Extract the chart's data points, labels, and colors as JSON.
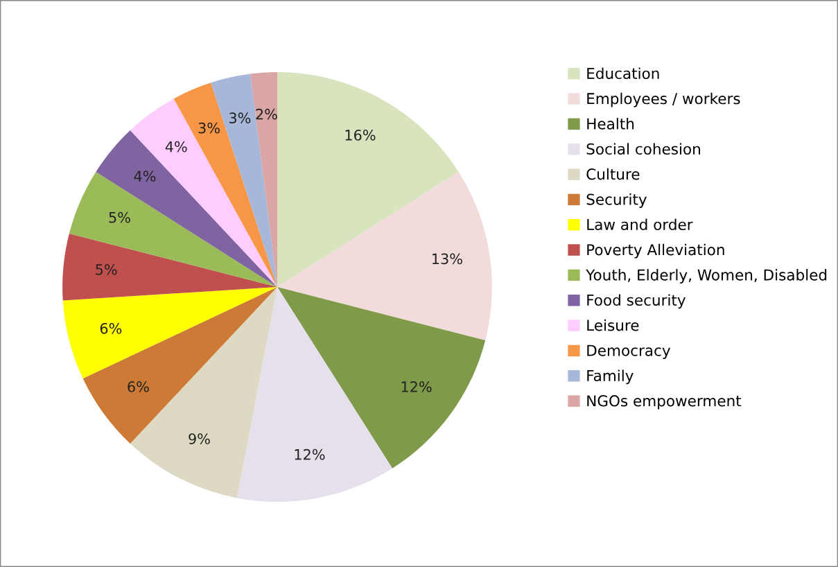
{
  "chart_data": {
    "type": "pie",
    "categories": [
      "Education",
      "Employees / workers",
      "Health",
      "Social cohesion",
      "Culture",
      "Security",
      "Law and order",
      "Poverty Alleviation",
      "Youth, Elderly, Women, Disabled",
      "Food security",
      "Leisure",
      "Democracy",
      "Family",
      "NGOs empowerment"
    ],
    "values": [
      16,
      13,
      12,
      12,
      9,
      6,
      6,
      5,
      5,
      4,
      4,
      3,
      3,
      2
    ],
    "colors": [
      "#d7e4bd",
      "#f2dcdb",
      "#7f9a48",
      "#e5e0ec",
      "#ddd9c3",
      "#cc7a35",
      "#ffff00",
      "#c0504d",
      "#9bbb59",
      "#8064a2",
      "#ffccff",
      "#f79646",
      "#a6b7d9",
      "#d9a5a5"
    ],
    "value_labels": [
      "16%",
      "13%",
      "12%",
      "12%",
      "9%",
      "6%",
      "6%",
      "5%",
      "5%",
      "4%",
      "4%",
      "3%",
      "3%",
      "2%"
    ],
    "legend": "right"
  }
}
